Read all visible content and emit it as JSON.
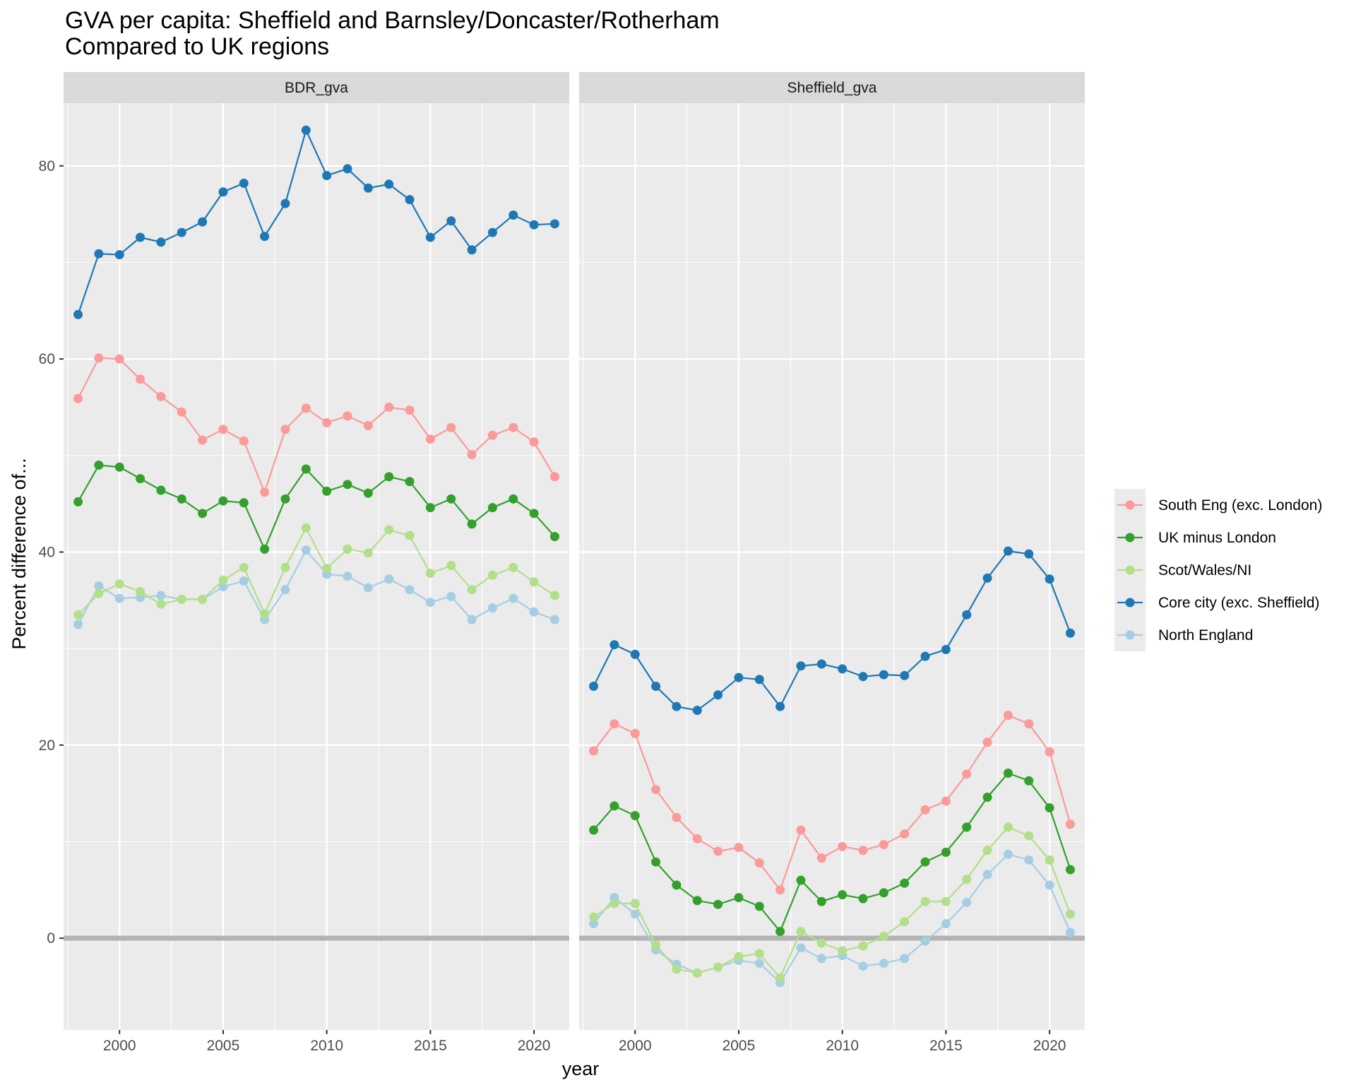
{
  "chart_data": {
    "type": "line",
    "title": "GVA per capita: Sheffield and Barnsley/Doncaster/Rotherham",
    "subtitle": "Compared to UK regions",
    "xlabel": "year",
    "ylabel": "Percent difference of...",
    "xlim": [
      1997.3,
      2021.7
    ],
    "ylim": [
      -9.5,
      86.5
    ],
    "x_ticks": [
      2000,
      2005,
      2010,
      2015,
      2020
    ],
    "y_ticks": [
      0,
      20,
      40,
      60,
      80
    ],
    "x": [
      1998,
      1999,
      2000,
      2001,
      2002,
      2003,
      2004,
      2005,
      2006,
      2007,
      2008,
      2009,
      2010,
      2011,
      2012,
      2013,
      2014,
      2015,
      2016,
      2017,
      2018,
      2019,
      2020,
      2021
    ],
    "reference_line_y": 0,
    "legend_position": "right",
    "panels": [
      {
        "label": "BDR_gva",
        "series": [
          {
            "name": "North England",
            "color": "#a6cee3",
            "values": [
              32.5,
              36.5,
              35.2,
              35.3,
              35.5,
              35.1,
              35.1,
              36.4,
              37.0,
              33.0,
              36.1,
              40.2,
              37.7,
              37.5,
              36.3,
              37.2,
              36.1,
              34.8,
              35.4,
              33.0,
              34.2,
              35.2,
              33.8,
              33.0
            ]
          },
          {
            "name": "Scot/Wales/NI",
            "color": "#b2df8a",
            "values": [
              33.5,
              35.7,
              36.7,
              35.9,
              34.6,
              35.1,
              35.1,
              37.1,
              38.4,
              33.6,
              38.4,
              42.5,
              38.3,
              40.3,
              39.9,
              42.3,
              41.7,
              37.8,
              38.6,
              36.1,
              37.6,
              38.4,
              36.9,
              35.5
            ]
          },
          {
            "name": "UK minus London",
            "color": "#33a02c",
            "values": [
              45.2,
              49.0,
              48.8,
              47.6,
              46.4,
              45.5,
              44.0,
              45.3,
              45.1,
              40.3,
              45.5,
              48.6,
              46.3,
              47.0,
              46.1,
              47.8,
              47.3,
              44.6,
              45.5,
              42.9,
              44.6,
              45.5,
              44.0,
              41.6
            ]
          },
          {
            "name": "South Eng (exc. London)",
            "color": "#fb9a99",
            "values": [
              55.9,
              60.1,
              60.0,
              57.9,
              56.1,
              54.5,
              51.6,
              52.7,
              51.5,
              46.2,
              52.7,
              54.9,
              53.4,
              54.1,
              53.1,
              55.0,
              54.7,
              51.7,
              52.9,
              50.1,
              52.1,
              52.9,
              51.4,
              47.8
            ]
          },
          {
            "name": "Core city (exc. Sheffield)",
            "color": "#1f78b4",
            "values": [
              64.6,
              70.9,
              70.8,
              72.6,
              72.1,
              73.1,
              74.2,
              77.3,
              78.2,
              72.7,
              76.1,
              83.7,
              79.0,
              79.7,
              77.7,
              78.1,
              76.5,
              72.6,
              74.3,
              71.3,
              73.1,
              74.9,
              73.9,
              74.0
            ]
          }
        ]
      },
      {
        "label": "Sheffield_gva",
        "series": [
          {
            "name": "North England",
            "color": "#a6cee3",
            "values": [
              1.5,
              4.2,
              2.5,
              -1.2,
              -2.7,
              -3.6,
              -3.0,
              -2.3,
              -2.6,
              -4.6,
              -1.0,
              -2.1,
              -1.8,
              -2.9,
              -2.6,
              -2.1,
              -0.3,
              1.5,
              3.7,
              6.6,
              8.7,
              8.1,
              5.5,
              0.6
            ]
          },
          {
            "name": "Scot/Wales/NI",
            "color": "#b2df8a",
            "values": [
              2.2,
              3.6,
              3.6,
              -0.7,
              -3.2,
              -3.6,
              -3.0,
              -1.9,
              -1.6,
              -4.1,
              0.7,
              -0.5,
              -1.3,
              -0.8,
              0.2,
              1.7,
              3.8,
              3.8,
              6.1,
              9.1,
              11.5,
              10.6,
              8.1,
              2.5
            ]
          },
          {
            "name": "UK minus London",
            "color": "#33a02c",
            "values": [
              11.2,
              13.7,
              12.7,
              7.9,
              5.5,
              3.9,
              3.5,
              4.2,
              3.3,
              0.7,
              6.0,
              3.8,
              4.5,
              4.1,
              4.7,
              5.7,
              7.9,
              8.9,
              11.5,
              14.6,
              17.1,
              16.3,
              13.5,
              7.1
            ]
          },
          {
            "name": "South Eng (exc. London)",
            "color": "#fb9a99",
            "values": [
              19.4,
              22.2,
              21.2,
              15.4,
              12.5,
              10.3,
              9.0,
              9.4,
              7.8,
              5.0,
              11.2,
              8.3,
              9.5,
              9.1,
              9.7,
              10.8,
              13.3,
              14.2,
              17.0,
              20.3,
              23.1,
              22.2,
              19.3,
              11.8
            ]
          },
          {
            "name": "Core city (exc. Sheffield)",
            "color": "#1f78b4",
            "values": [
              26.1,
              30.4,
              29.4,
              26.1,
              24.0,
              23.6,
              25.2,
              27.0,
              26.8,
              24.0,
              28.2,
              28.4,
              27.9,
              27.1,
              27.3,
              27.2,
              29.2,
              29.9,
              33.5,
              37.3,
              40.1,
              39.8,
              37.2,
              31.6
            ]
          }
        ]
      }
    ],
    "legend": [
      {
        "name": "South Eng (exc. London)",
        "color": "#fb9a99"
      },
      {
        "name": "UK minus London",
        "color": "#33a02c"
      },
      {
        "name": "Scot/Wales/NI",
        "color": "#b2df8a"
      },
      {
        "name": "Core city (exc. Sheffield)",
        "color": "#1f78b4"
      },
      {
        "name": "North England",
        "color": "#a6cee3"
      }
    ]
  }
}
